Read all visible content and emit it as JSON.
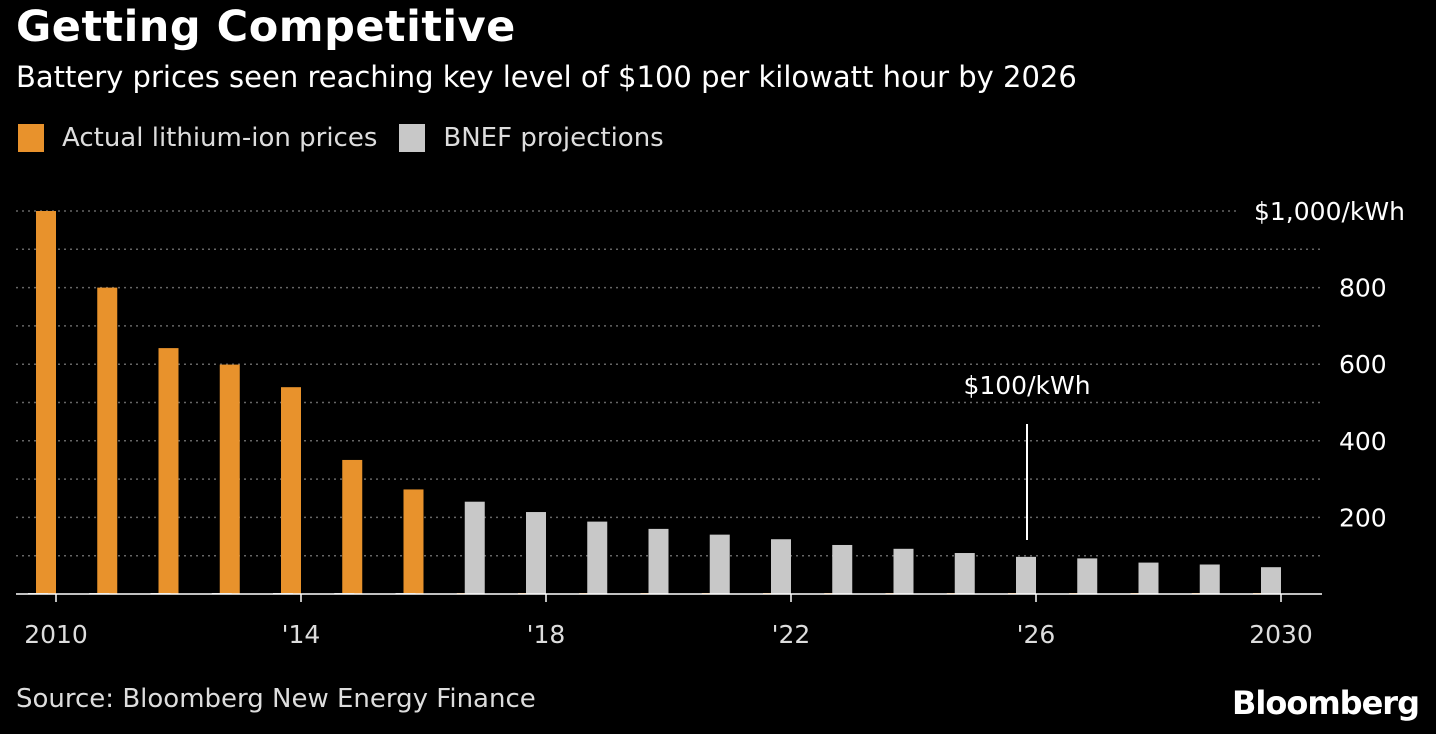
{
  "colors": {
    "actual": "#E8922C",
    "projection": "#C8C8C8",
    "background": "#000000"
  },
  "legend": {
    "actual_label": "Actual lithium-ion prices",
    "projection_label": "BNEF projections"
  },
  "source": "Source: Bloomberg New Energy Finance",
  "brand": "Bloomberg",
  "chart_data": {
    "type": "bar",
    "title": "Getting Competitive",
    "subtitle": "Battery prices seen reaching key level of $100 per kilowatt hour by 2026",
    "xlabel": "",
    "ylabel": "",
    "ylim": [
      0,
      1000
    ],
    "categories": [
      "2010",
      "2011",
      "2012",
      "2013",
      "2014",
      "2015",
      "2016",
      "2017",
      "2018",
      "2019",
      "2020",
      "2021",
      "2022",
      "2023",
      "2024",
      "2025",
      "2026",
      "2027",
      "2028",
      "2029",
      "2030"
    ],
    "series": [
      {
        "name": "Actual lithium-ion prices",
        "values": [
          1000,
          800,
          642,
          599,
          540,
          350,
          273,
          null,
          null,
          null,
          null,
          null,
          null,
          null,
          null,
          null,
          null,
          null,
          null,
          null,
          null
        ]
      },
      {
        "name": "BNEF projections",
        "values": [
          null,
          null,
          null,
          null,
          null,
          null,
          null,
          241,
          214,
          189,
          170,
          155,
          143,
          128,
          118,
          107,
          97,
          93,
          82,
          77,
          70
        ]
      }
    ],
    "x_tick_labels": [
      {
        "index": 0,
        "label": "2010"
      },
      {
        "index": 4,
        "label": "'14"
      },
      {
        "index": 8,
        "label": "'18"
      },
      {
        "index": 12,
        "label": "'22"
      },
      {
        "index": 16,
        "label": "'26"
      },
      {
        "index": 20,
        "label": "2030"
      }
    ],
    "y_ticks": [
      {
        "value": 1000,
        "label": "$1,000/kWh"
      },
      {
        "value": 800,
        "label": "800"
      },
      {
        "value": 600,
        "label": "600"
      },
      {
        "value": 400,
        "label": "400"
      },
      {
        "value": 200,
        "label": "200"
      }
    ],
    "gridlines": [
      100,
      200,
      300,
      400,
      500,
      600,
      700,
      800,
      900,
      1000
    ],
    "annotation": {
      "label": "$100/kWh",
      "category_index": 16
    },
    "grid": true,
    "legend_position": "top-left"
  }
}
